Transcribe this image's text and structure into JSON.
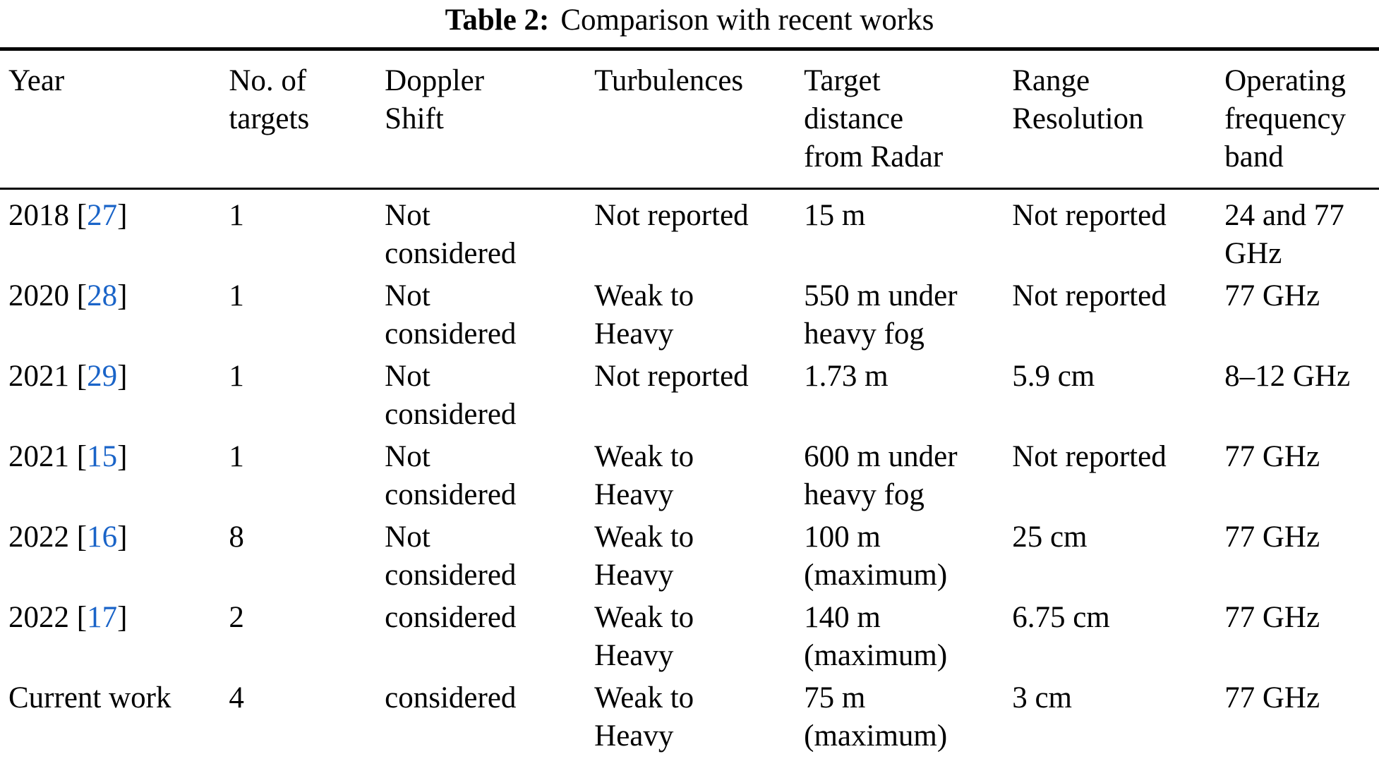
{
  "caption": {
    "label": "Table 2:",
    "text": "Comparison with recent works"
  },
  "columns": [
    "Year",
    "No. of\ntargets",
    "Doppler\nShift",
    "Turbulences",
    "Target\ndistance\nfrom Radar",
    "Range\nResolution",
    "Operating\nfrequency\nband"
  ],
  "rows": [
    {
      "year": "2018",
      "cite_open": " [",
      "cite": "27",
      "cite_close": "]",
      "targets": "1",
      "doppler": "Not\nconsidered",
      "turbulences": "Not reported",
      "distance": "15 m",
      "resolution": "Not reported",
      "band": "24 and 77\nGHz"
    },
    {
      "year": "2020",
      "cite_open": " [",
      "cite": "28",
      "cite_close": "]",
      "targets": "1",
      "doppler": "Not\nconsidered",
      "turbulences": "Weak to\nHeavy",
      "distance": "550 m under\nheavy fog",
      "resolution": "Not reported",
      "band": "77 GHz"
    },
    {
      "year": "2021",
      "cite_open": " [",
      "cite": "29",
      "cite_close": "]",
      "targets": "1",
      "doppler": "Not\nconsidered",
      "turbulences": "Not reported",
      "distance": "1.73 m",
      "resolution": "5.9 cm",
      "band": "8–12 GHz"
    },
    {
      "year": "2021",
      "cite_open": " [",
      "cite": "15",
      "cite_close": "]",
      "targets": "1",
      "doppler": "Not\nconsidered",
      "turbulences": "Weak to\nHeavy",
      "distance": "600 m under\nheavy fog",
      "resolution": "Not reported",
      "band": "77 GHz"
    },
    {
      "year": "2022",
      "cite_open": " [",
      "cite": "16",
      "cite_close": "]",
      "targets": "8",
      "doppler": "Not\nconsidered",
      "turbulences": "Weak to\nHeavy",
      "distance": "100 m\n(maximum)",
      "resolution": "25 cm",
      "band": "77 GHz"
    },
    {
      "year": "2022",
      "cite_open": " [",
      "cite": "17",
      "cite_close": "]",
      "targets": "2",
      "doppler": "considered",
      "turbulences": "Weak to\nHeavy",
      "distance": "140 m\n(maximum)",
      "resolution": "6.75 cm",
      "band": "77 GHz"
    },
    {
      "year": "Current work",
      "targets": "4",
      "doppler": "considered",
      "turbulences": "Weak to\nHeavy",
      "distance": "75 m\n(maximum)",
      "resolution": "3 cm",
      "band": "77 GHz"
    }
  ],
  "colors": {
    "citation_link": "#1a64c8",
    "text": "#000000",
    "background": "#ffffff",
    "rule": "#000000"
  }
}
